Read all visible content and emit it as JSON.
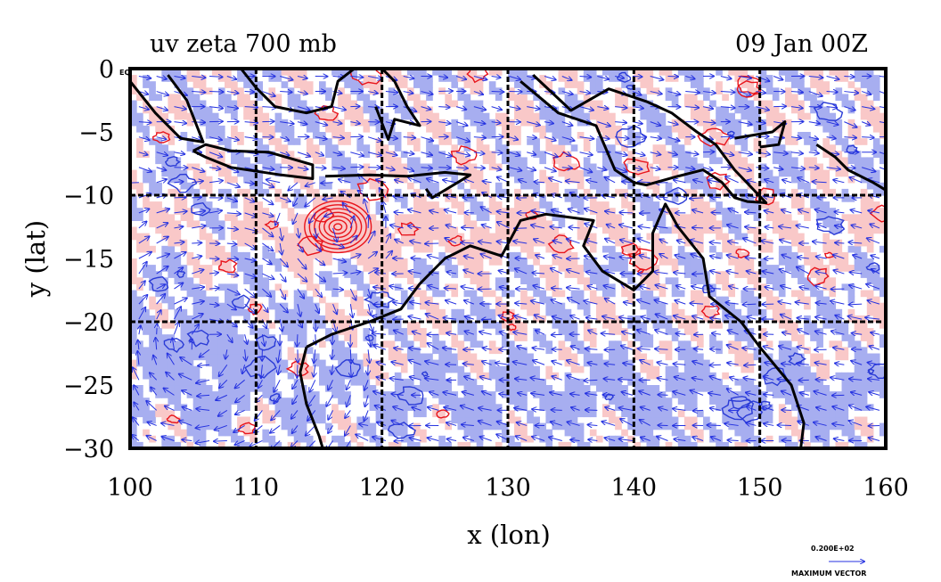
{
  "title_left": "uv zeta 700 mb",
  "title_right": "09 Jan 00Z",
  "corner_label": "EQ",
  "x_axis": {
    "label": "x (lon)",
    "ticks": [
      "100",
      "110",
      "120",
      "130",
      "140",
      "150",
      "160"
    ]
  },
  "y_axis": {
    "label": "y (lat)",
    "ticks": [
      "0",
      "−5",
      "−10",
      "−15",
      "−20",
      "−25",
      "−30"
    ]
  },
  "vector_legend": {
    "magnitude": "0.200E+02",
    "label": "MAXIMUM VECTOR"
  },
  "colors": {
    "positive_vorticity_fill": "#f9c8c8",
    "negative_vorticity_fill": "#a7aef0",
    "positive_contour": "#e8141b",
    "negative_contour": "#2a3bd6",
    "vector": "#2431e0",
    "coastline": "#000000"
  },
  "chart_data": {
    "type": "map",
    "field": "uv zeta 700 mb",
    "time": "09 Jan 00Z",
    "xlim": [
      100,
      160
    ],
    "ylim": [
      -30,
      0
    ],
    "x_ticks": [
      100,
      110,
      120,
      130,
      140,
      150,
      160
    ],
    "y_ticks": [
      0,
      -5,
      -10,
      -15,
      -20,
      -25,
      -30
    ],
    "grid": true,
    "gridlines_lon": [
      110,
      120,
      130,
      140,
      150
    ],
    "gridlines_lat": [
      -10,
      -20
    ],
    "features": {
      "cyclone_center": [
        116.5,
        -12.5
      ],
      "positive_band_lat": -13,
      "negative_gyre_center": [
        106,
        -22
      ]
    }
  }
}
